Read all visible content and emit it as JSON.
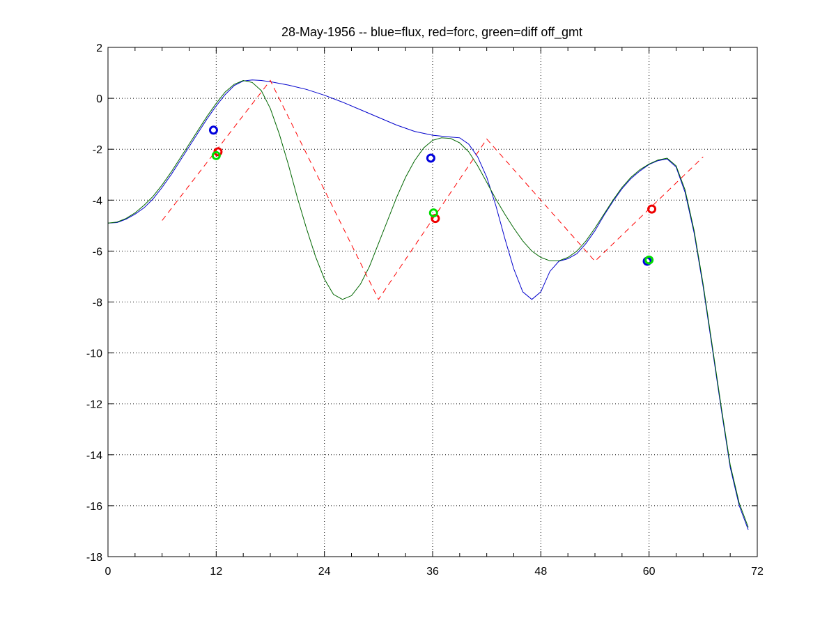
{
  "chart_data": {
    "type": "line",
    "title": "28-May-1956 -- blue=flux, red=forc, green=diff off_gmt",
    "xlabel": "",
    "ylabel": "",
    "xlim": [
      0,
      72
    ],
    "ylim": [
      -18,
      2
    ],
    "xticks": [
      "0",
      "12",
      "24",
      "36",
      "48",
      "60",
      "72"
    ],
    "yticks": [
      "2",
      "0",
      "-2",
      "-4",
      "-6",
      "-8",
      "-10",
      "-12",
      "-14",
      "-16",
      "-18"
    ],
    "grid": true,
    "series": [
      {
        "color": "#0000cc",
        "style": "solid",
        "points": [
          [
            0,
            -4.9
          ],
          [
            1,
            -4.88
          ],
          [
            2,
            -4.75
          ],
          [
            3,
            -4.55
          ],
          [
            4,
            -4.3
          ],
          [
            5,
            -3.95
          ],
          [
            6,
            -3.5
          ],
          [
            7,
            -3.0
          ],
          [
            8,
            -2.45
          ],
          [
            9,
            -1.9
          ],
          [
            10,
            -1.35
          ],
          [
            11,
            -0.8
          ],
          [
            12,
            -0.3
          ],
          [
            13,
            0.15
          ],
          [
            14,
            0.5
          ],
          [
            15,
            0.68
          ],
          [
            16,
            0.72
          ],
          [
            17,
            0.7
          ],
          [
            18,
            0.65
          ],
          [
            20,
            0.52
          ],
          [
            22,
            0.35
          ],
          [
            24,
            0.12
          ],
          [
            26,
            -0.15
          ],
          [
            28,
            -0.45
          ],
          [
            30,
            -0.75
          ],
          [
            32,
            -1.05
          ],
          [
            34,
            -1.3
          ],
          [
            36,
            -1.45
          ],
          [
            38,
            -1.52
          ],
          [
            39,
            -1.55
          ],
          [
            40,
            -1.8
          ],
          [
            41,
            -2.3
          ],
          [
            42,
            -3.1
          ],
          [
            43,
            -4.2
          ],
          [
            44,
            -5.5
          ],
          [
            45,
            -6.7
          ],
          [
            46,
            -7.6
          ],
          [
            47,
            -7.9
          ],
          [
            48,
            -7.6
          ],
          [
            49,
            -6.8
          ],
          [
            50,
            -6.4
          ],
          [
            51,
            -6.3
          ],
          [
            52,
            -6.1
          ],
          [
            53,
            -5.7
          ],
          [
            54,
            -5.2
          ],
          [
            55,
            -4.6
          ],
          [
            56,
            -4.05
          ],
          [
            57,
            -3.55
          ],
          [
            58,
            -3.15
          ],
          [
            59,
            -2.85
          ],
          [
            60,
            -2.6
          ],
          [
            61,
            -2.45
          ],
          [
            62,
            -2.38
          ],
          [
            63,
            -2.7
          ],
          [
            64,
            -3.7
          ],
          [
            65,
            -5.3
          ],
          [
            66,
            -7.4
          ],
          [
            67,
            -9.8
          ],
          [
            68,
            -12.2
          ],
          [
            69,
            -14.5
          ],
          [
            70,
            -16.0
          ],
          [
            71,
            -16.95
          ]
        ]
      },
      {
        "color": "#006600",
        "style": "solid",
        "points": [
          [
            0,
            -4.9
          ],
          [
            1,
            -4.86
          ],
          [
            2,
            -4.72
          ],
          [
            3,
            -4.5
          ],
          [
            4,
            -4.2
          ],
          [
            5,
            -3.85
          ],
          [
            6,
            -3.4
          ],
          [
            7,
            -2.9
          ],
          [
            8,
            -2.35
          ],
          [
            9,
            -1.8
          ],
          [
            10,
            -1.25
          ],
          [
            11,
            -0.7
          ],
          [
            12,
            -0.2
          ],
          [
            13,
            0.25
          ],
          [
            14,
            0.55
          ],
          [
            15,
            0.7
          ],
          [
            16,
            0.62
          ],
          [
            17,
            0.3
          ],
          [
            18,
            -0.4
          ],
          [
            19,
            -1.4
          ],
          [
            20,
            -2.6
          ],
          [
            21,
            -3.9
          ],
          [
            22,
            -5.1
          ],
          [
            23,
            -6.2
          ],
          [
            24,
            -7.1
          ],
          [
            25,
            -7.7
          ],
          [
            26,
            -7.9
          ],
          [
            27,
            -7.75
          ],
          [
            28,
            -7.3
          ],
          [
            29,
            -6.6
          ],
          [
            30,
            -5.7
          ],
          [
            31,
            -4.8
          ],
          [
            32,
            -3.9
          ],
          [
            33,
            -3.1
          ],
          [
            34,
            -2.45
          ],
          [
            35,
            -1.95
          ],
          [
            36,
            -1.65
          ],
          [
            37,
            -1.55
          ],
          [
            38,
            -1.58
          ],
          [
            39,
            -1.75
          ],
          [
            40,
            -2.1
          ],
          [
            41,
            -2.65
          ],
          [
            42,
            -3.3
          ],
          [
            43,
            -3.95
          ],
          [
            44,
            -4.55
          ],
          [
            45,
            -5.1
          ],
          [
            46,
            -5.6
          ],
          [
            47,
            -6.0
          ],
          [
            48,
            -6.25
          ],
          [
            49,
            -6.38
          ],
          [
            50,
            -6.38
          ],
          [
            51,
            -6.25
          ],
          [
            52,
            -6.0
          ],
          [
            53,
            -5.6
          ],
          [
            54,
            -5.1
          ],
          [
            55,
            -4.55
          ],
          [
            56,
            -4.0
          ],
          [
            57,
            -3.5
          ],
          [
            58,
            -3.1
          ],
          [
            59,
            -2.8
          ],
          [
            60,
            -2.58
          ],
          [
            61,
            -2.42
          ],
          [
            62,
            -2.35
          ],
          [
            63,
            -2.65
          ],
          [
            64,
            -3.6
          ],
          [
            65,
            -5.2
          ],
          [
            66,
            -7.3
          ],
          [
            67,
            -9.7
          ],
          [
            68,
            -12.1
          ],
          [
            69,
            -14.4
          ],
          [
            70,
            -15.9
          ],
          [
            71,
            -16.85
          ]
        ]
      },
      {
        "color": "#ff0000",
        "style": "dashed",
        "points": [
          [
            6,
            -4.8
          ],
          [
            18,
            0.7
          ],
          [
            30,
            -7.9
          ],
          [
            42,
            -1.6
          ],
          [
            54,
            -6.4
          ],
          [
            66,
            -2.3
          ]
        ]
      }
    ],
    "markers": [
      {
        "x": 11.7,
        "y": -1.25,
        "color": "#0000dd"
      },
      {
        "x": 12.2,
        "y": -2.1,
        "color": "#ee0000"
      },
      {
        "x": 12.0,
        "y": -2.25,
        "color": "#00dd00"
      },
      {
        "x": 35.8,
        "y": -2.35,
        "color": "#0000dd"
      },
      {
        "x": 36.3,
        "y": -4.72,
        "color": "#ee0000"
      },
      {
        "x": 36.1,
        "y": -4.5,
        "color": "#00dd00"
      },
      {
        "x": 59.8,
        "y": -6.4,
        "color": "#0000dd"
      },
      {
        "x": 60.3,
        "y": -4.35,
        "color": "#ee0000"
      },
      {
        "x": 60.0,
        "y": -6.35,
        "color": "#00dd00"
      }
    ]
  }
}
